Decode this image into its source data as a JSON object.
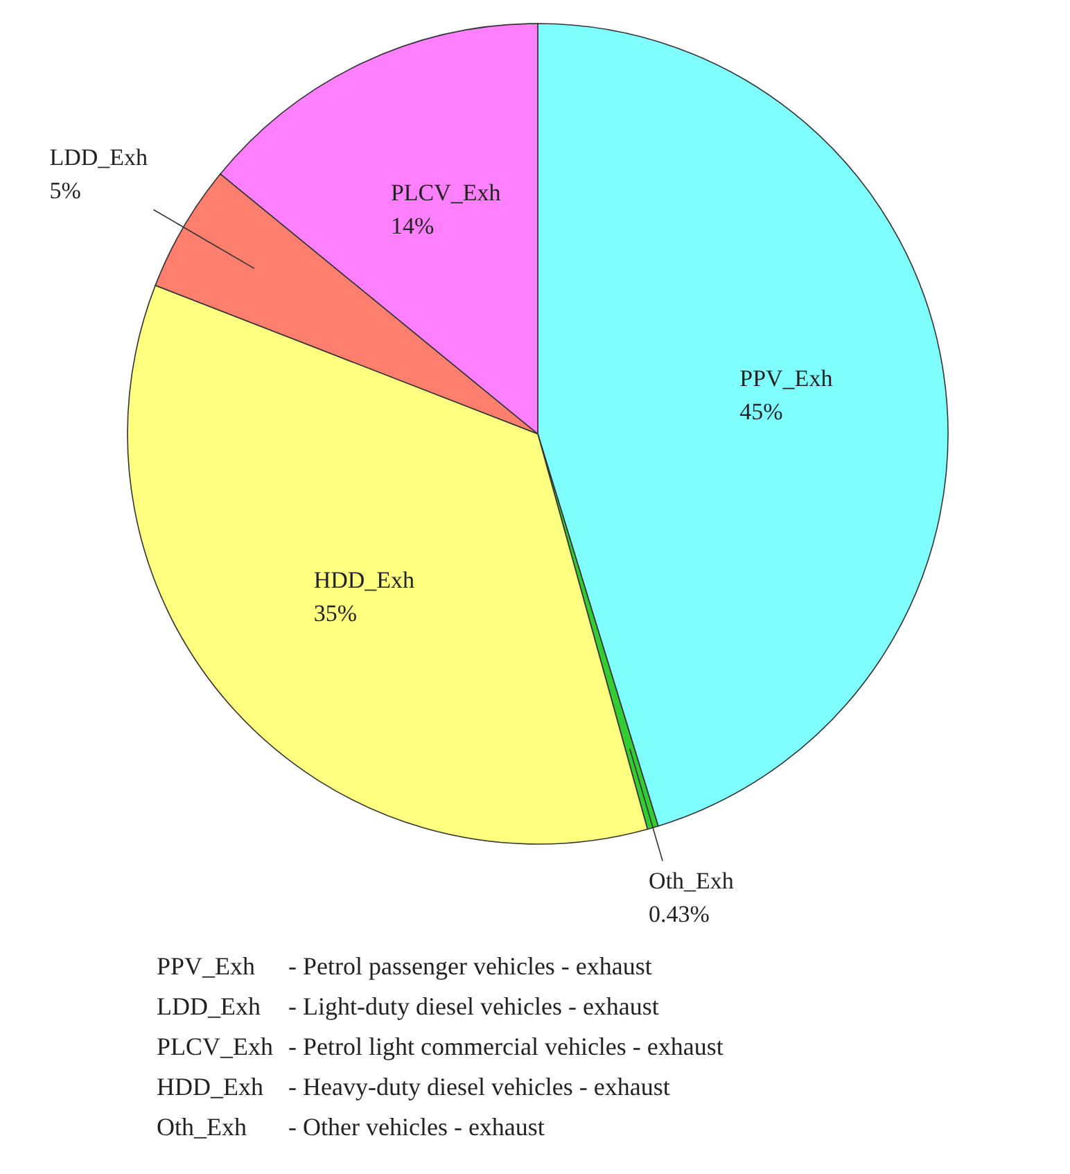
{
  "chart_data": {
    "type": "pie",
    "categories": [
      "PPV_Exh",
      "Oth_Exh",
      "HDD_Exh",
      "LDD_Exh",
      "PLCV_Exh"
    ],
    "values": [
      45,
      0.43,
      35,
      5,
      14
    ],
    "value_labels": [
      "45%",
      "0.43%",
      "35%",
      "5%",
      "14%"
    ],
    "colors": [
      "#80ffff",
      "#33cc33",
      "#ffff80",
      "#ff7f6f",
      "#ff80ff"
    ],
    "annotations": [
      "PPV_Exh - Petrol passenger vehicles - exhaust",
      "LDD_Exh - Light-duty diesel vehicles - exhaust",
      "PLCV_Exh - Petrol light commercial vehicles - exhaust",
      "HDD_Exh - Heavy-duty diesel vehicles - exhaust",
      "Oth_Exh - Other vehicles - exhaust"
    ]
  }
}
